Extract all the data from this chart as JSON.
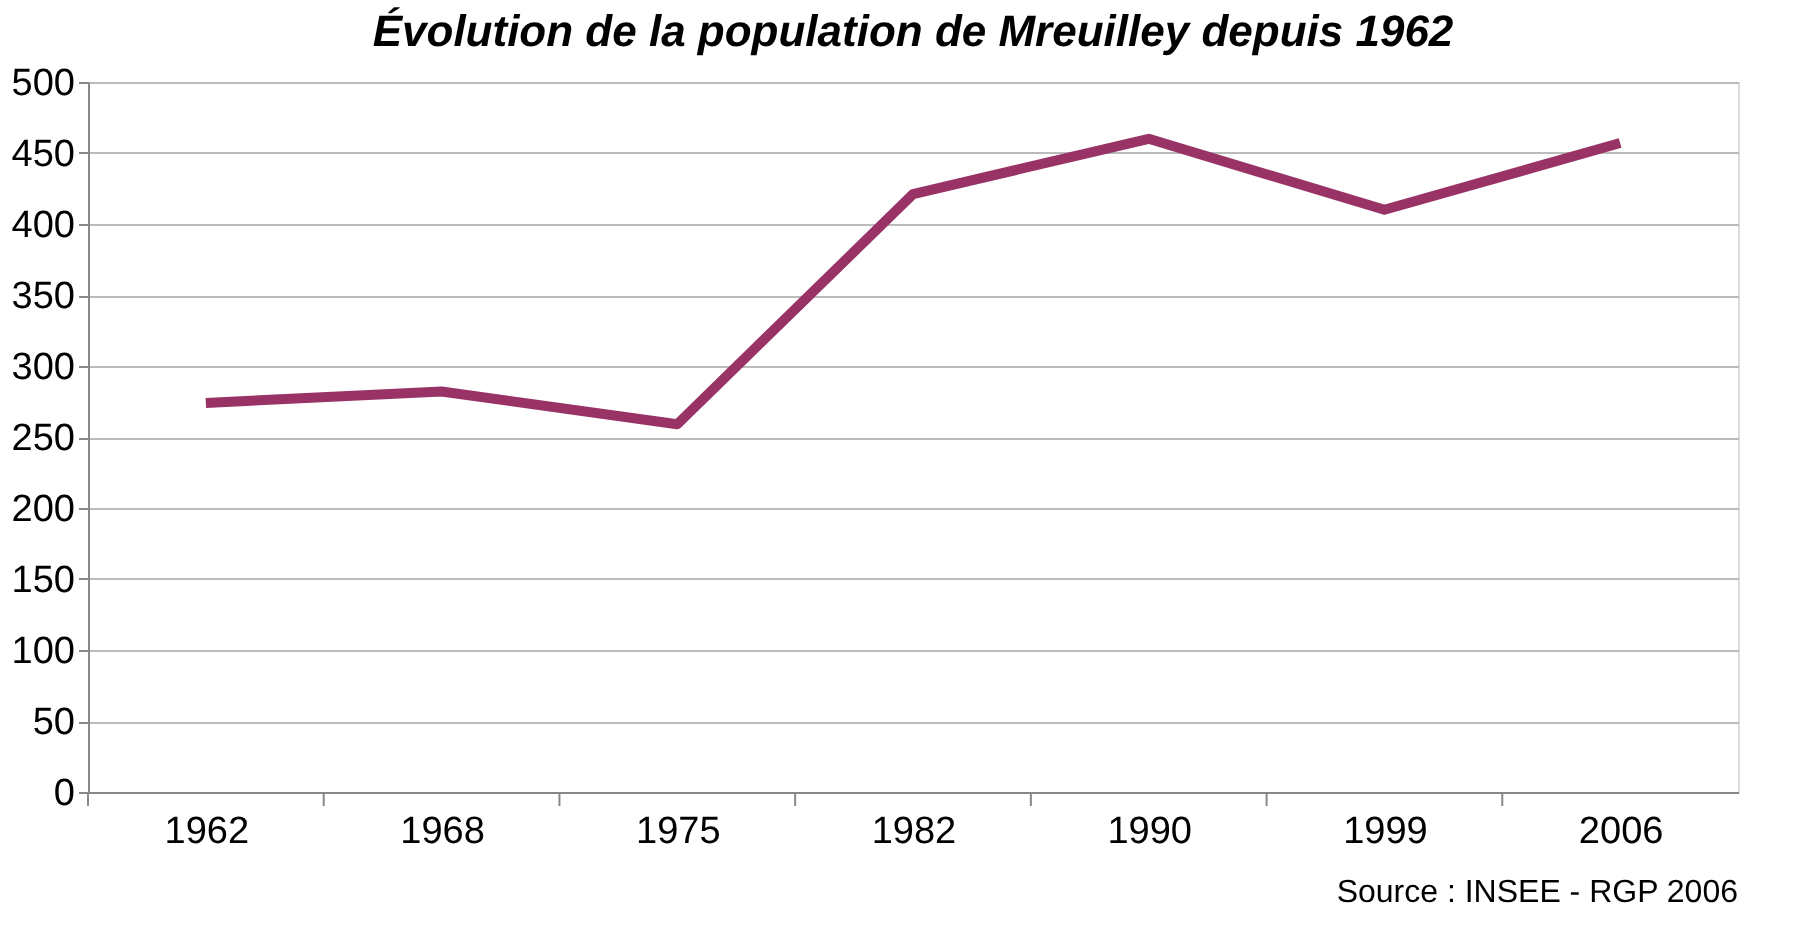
{
  "chart_data": {
    "type": "line",
    "title": "Évolution de la population de Mreuilley depuis 1962",
    "categories": [
      "1962",
      "1968",
      "1975",
      "1982",
      "1990",
      "1999",
      "2006"
    ],
    "series": [
      {
        "color": "#993366",
        "values": [
          274,
          282,
          259,
          421,
          460,
          410,
          457
        ]
      }
    ],
    "ylim": [
      0,
      500
    ],
    "yticks": [
      0,
      50,
      100,
      150,
      200,
      250,
      300,
      350,
      400,
      450,
      500
    ],
    "grid": "y",
    "legend": false,
    "marker": "none",
    "line_style": "solid",
    "annotations": [
      "Source : INSEE - RGP 2006"
    ]
  }
}
